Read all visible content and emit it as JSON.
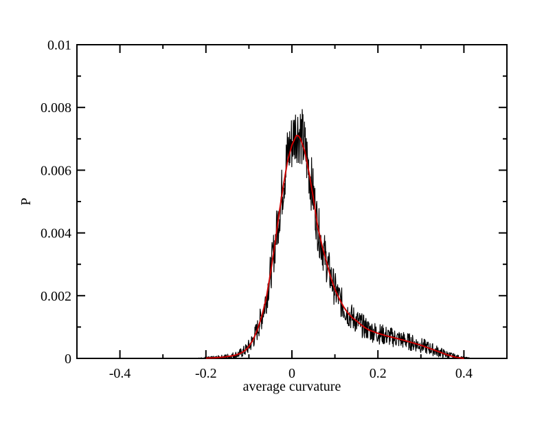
{
  "chart_data": {
    "type": "line",
    "title": "",
    "xlabel": "average curvature",
    "ylabel": "P",
    "xlim": [
      -0.5,
      0.5
    ],
    "ylim": [
      0,
      0.01
    ],
    "x_ticks": [
      -0.4,
      -0.2,
      0,
      0.2,
      0.4
    ],
    "x_tick_labels": [
      "-0.4",
      "-0.2",
      "0",
      "0.2",
      "0.4"
    ],
    "y_ticks": [
      0,
      0.002,
      0.004,
      0.006,
      0.008,
      0.01
    ],
    "y_tick_labels": [
      "0",
      "0.002",
      "0.004",
      "0.006",
      "0.008",
      "0.01"
    ],
    "grid": false,
    "series": [
      {
        "color": "#000000",
        "style": "noisy histogram",
        "x": [
          -0.34,
          -0.3,
          -0.26,
          -0.22,
          -0.2,
          -0.18,
          -0.16,
          -0.15,
          -0.14,
          -0.13,
          -0.12,
          -0.11,
          -0.1,
          -0.09,
          -0.08,
          -0.07,
          -0.06,
          -0.05,
          -0.04,
          -0.03,
          -0.02,
          -0.01,
          0,
          0.01,
          0.015,
          0.02,
          0.03,
          0.04,
          0.05,
          0.06,
          0.07,
          0.08,
          0.09,
          0.1,
          0.11,
          0.12,
          0.13,
          0.14,
          0.15,
          0.16,
          0.17,
          0.18,
          0.2,
          0.22,
          0.24,
          0.26,
          0.28,
          0.3,
          0.32,
          0.34,
          0.36,
          0.38,
          0.4,
          0.42,
          0.44
        ],
        "y": [
          0,
          0,
          0,
          0,
          1e-05,
          2e-05,
          4e-05,
          6e-05,
          8e-05,
          0.00011,
          0.00016,
          0.00024,
          0.00038,
          0.0006,
          0.00092,
          0.00135,
          0.0019,
          0.0027,
          0.0036,
          0.0046,
          0.0056,
          0.0065,
          0.0069,
          0.0073,
          0.0072,
          0.0072,
          0.0067,
          0.006,
          0.0052,
          0.0042,
          0.0036,
          0.0031,
          0.0026,
          0.0022,
          0.0019,
          0.00165,
          0.00145,
          0.0013,
          0.0012,
          0.00108,
          0.00098,
          0.0009,
          0.0008,
          0.00072,
          0.00065,
          0.00058,
          0.0005,
          0.00042,
          0.00032,
          0.00022,
          0.00012,
          5e-05,
          1e-05,
          0,
          0
        ]
      },
      {
        "color": "#cc0000",
        "style": "smooth fit",
        "x": [
          -0.2,
          -0.18,
          -0.16,
          -0.15,
          -0.14,
          -0.13,
          -0.12,
          -0.11,
          -0.1,
          -0.09,
          -0.08,
          -0.07,
          -0.06,
          -0.05,
          -0.04,
          -0.03,
          -0.02,
          -0.01,
          0,
          0.01,
          0.015,
          0.02,
          0.03,
          0.04,
          0.05,
          0.06,
          0.07,
          0.08,
          0.09,
          0.1,
          0.11,
          0.12,
          0.13,
          0.14,
          0.15,
          0.16,
          0.17,
          0.18,
          0.2,
          0.22,
          0.24,
          0.26,
          0.28,
          0.3,
          0.32,
          0.34,
          0.36,
          0.38,
          0.4
        ],
        "y": [
          1e-05,
          2e-05,
          4e-05,
          6e-05,
          8e-05,
          0.00011,
          0.00016,
          0.00024,
          0.00038,
          0.0006,
          0.00092,
          0.00135,
          0.0019,
          0.0027,
          0.0036,
          0.0046,
          0.0055,
          0.0063,
          0.0068,
          0.0071,
          0.0071,
          0.007,
          0.0066,
          0.0059,
          0.0051,
          0.0042,
          0.0036,
          0.0031,
          0.0026,
          0.0022,
          0.0019,
          0.00165,
          0.00145,
          0.0013,
          0.0012,
          0.00108,
          0.00098,
          0.0009,
          0.0008,
          0.00072,
          0.00065,
          0.00058,
          0.0005,
          0.00042,
          0.00032,
          0.00022,
          0.00012,
          4e-05,
          0
        ]
      }
    ]
  }
}
